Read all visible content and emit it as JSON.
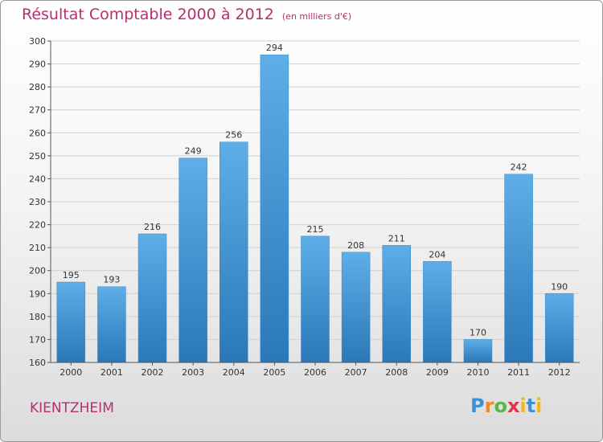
{
  "title": "Résultat Comptable 2000 à 2012",
  "subtitle": "(en milliers d'€)",
  "commune": "KIENTZHEIM",
  "logo": {
    "p": "P",
    "r": "r",
    "o": "o",
    "x": "x",
    "i": "i",
    "t": "t",
    "i2": "i"
  },
  "colors": {
    "bar_light": "#5eaee8",
    "bar_dark": "#2a78b8",
    "accent": "#b5306e"
  },
  "chart_data": {
    "type": "bar",
    "title": "Résultat Comptable 2000 à 2012",
    "subtitle": "(en milliers d'€)",
    "xlabel": "",
    "ylabel": "",
    "categories": [
      "2000",
      "2001",
      "2002",
      "2003",
      "2004",
      "2005",
      "2006",
      "2007",
      "2008",
      "2009",
      "2010",
      "2011",
      "2012"
    ],
    "values": [
      195,
      193,
      216,
      249,
      256,
      294,
      215,
      208,
      211,
      204,
      170,
      242,
      190
    ],
    "ylim": [
      160,
      300
    ],
    "yticks": [
      160,
      170,
      180,
      190,
      200,
      210,
      220,
      230,
      240,
      250,
      260,
      270,
      280,
      290,
      300
    ],
    "grid": true
  }
}
